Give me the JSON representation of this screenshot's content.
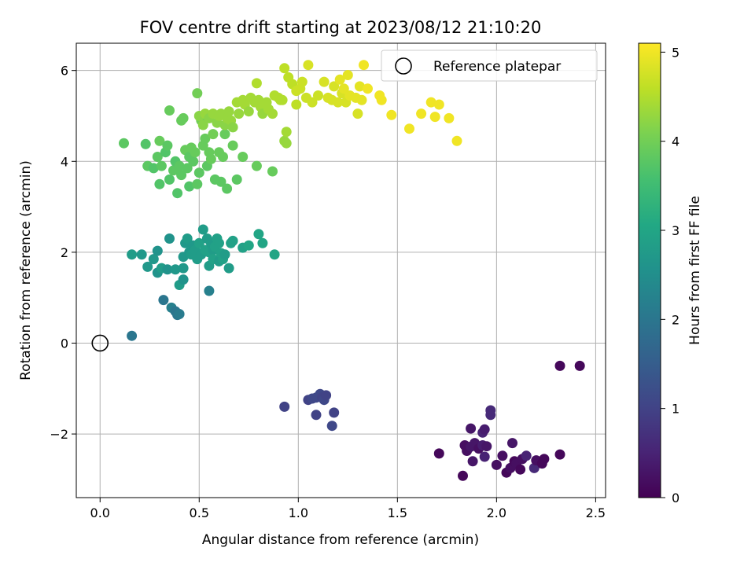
{
  "chart_data": {
    "type": "scatter",
    "title": "FOV centre drift starting at 2023/08/12 21:10:20",
    "xlabel": "Angular distance from reference (arcmin)",
    "ylabel": "Rotation from reference (arcmin)",
    "xlim": [
      -0.12,
      2.55
    ],
    "ylim": [
      -3.4,
      6.6
    ],
    "xticks": [
      0.0,
      0.5,
      1.0,
      1.5,
      2.0,
      2.5
    ],
    "xtick_labels": [
      "0.0",
      "0.5",
      "1.0",
      "1.5",
      "2.0",
      "2.5"
    ],
    "yticks": [
      -2,
      0,
      2,
      4,
      6
    ],
    "ytick_labels": [
      "−2",
      "0",
      "2",
      "4",
      "6"
    ],
    "grid": true,
    "legend": {
      "placement": "top-right",
      "entries": [
        "Reference platepar"
      ]
    },
    "reference_point": {
      "x": 0.0,
      "y": 0.0,
      "label": "Reference platepar"
    },
    "colorbar": {
      "label": "Hours from first FF file",
      "range": [
        0,
        5.1
      ],
      "ticks": [
        0,
        1,
        2,
        3,
        4,
        5
      ],
      "tick_labels": [
        "0",
        "1",
        "2",
        "3",
        "4",
        "5"
      ],
      "colormap": "viridis"
    },
    "series": [
      {
        "points": [
          [
            1.71,
            -2.43,
            0.1
          ],
          [
            1.83,
            -2.92,
            0.1
          ],
          [
            1.84,
            -2.25,
            0.2
          ],
          [
            1.85,
            -2.37,
            0.2
          ],
          [
            1.87,
            -2.28,
            0.3
          ],
          [
            1.88,
            -2.6,
            0.3
          ],
          [
            1.89,
            -2.2,
            0.3
          ],
          [
            1.91,
            -2.32,
            0.2
          ],
          [
            1.93,
            -2.25,
            0.4
          ],
          [
            1.94,
            -2.5,
            0.5
          ],
          [
            1.95,
            -2.27,
            0.3
          ],
          [
            2.0,
            -2.68,
            0.2
          ],
          [
            2.03,
            -2.48,
            0.2
          ],
          [
            2.05,
            -2.85,
            0.1
          ],
          [
            2.07,
            -2.75,
            0.2
          ],
          [
            2.08,
            -2.2,
            0.3
          ],
          [
            2.09,
            -2.6,
            0.1
          ],
          [
            2.1,
            -2.65,
            0.2
          ],
          [
            2.12,
            -2.78,
            0.1
          ],
          [
            2.13,
            -2.55,
            0.2
          ],
          [
            2.15,
            -2.48,
            0.5
          ],
          [
            2.19,
            -2.75,
            0.6
          ],
          [
            2.2,
            -2.58,
            0.2
          ],
          [
            2.23,
            -2.65,
            0.1
          ],
          [
            2.24,
            -2.55,
            0.1
          ],
          [
            2.32,
            -2.45,
            0.1
          ],
          [
            2.32,
            -0.5,
            0.1
          ],
          [
            2.42,
            -0.5,
            0.1
          ],
          [
            1.87,
            -1.88,
            0.3
          ],
          [
            1.93,
            -1.97,
            0.5
          ],
          [
            1.94,
            -1.9,
            0.4
          ],
          [
            1.97,
            -1.48,
            0.6
          ],
          [
            1.97,
            -1.58,
            0.6
          ]
        ]
      },
      {
        "points": [
          [
            0.93,
            -1.4,
            1.0
          ],
          [
            1.05,
            -1.25,
            1.0
          ],
          [
            1.07,
            -1.22,
            1.1
          ],
          [
            1.09,
            -1.2,
            1.1
          ],
          [
            1.11,
            -1.12,
            1.1
          ],
          [
            1.12,
            -1.2,
            1.0
          ],
          [
            1.13,
            -1.25,
            1.1
          ],
          [
            1.14,
            -1.15,
            1.0
          ],
          [
            1.09,
            -1.58,
            1.0
          ],
          [
            1.17,
            -1.82,
            1.1
          ],
          [
            1.18,
            -1.53,
            1.0
          ]
        ]
      },
      {
        "points": [
          [
            0.16,
            0.16,
            2.0
          ],
          [
            0.32,
            0.95,
            2.0
          ],
          [
            0.36,
            0.78,
            2.2
          ],
          [
            0.38,
            0.7,
            2.0
          ],
          [
            0.39,
            0.62,
            2.0
          ],
          [
            0.4,
            0.64,
            2.1
          ],
          [
            0.55,
            1.15,
            2.2
          ]
        ]
      },
      {
        "points": [
          [
            0.16,
            1.95,
            2.8
          ],
          [
            0.21,
            1.95,
            2.7
          ],
          [
            0.24,
            1.68,
            2.7
          ],
          [
            0.27,
            1.85,
            2.7
          ],
          [
            0.29,
            2.03,
            2.6
          ],
          [
            0.29,
            1.55,
            2.6
          ],
          [
            0.31,
            1.65,
            2.8
          ],
          [
            0.34,
            1.62,
            2.6
          ],
          [
            0.35,
            2.3,
            2.6
          ],
          [
            0.38,
            1.62,
            2.7
          ],
          [
            0.4,
            1.28,
            2.8
          ],
          [
            0.42,
            1.4,
            2.6
          ],
          [
            0.42,
            1.65,
            2.7
          ],
          [
            0.42,
            1.9,
            2.7
          ],
          [
            0.43,
            2.2,
            2.7
          ],
          [
            0.44,
            2.3,
            2.8
          ],
          [
            0.45,
            2.0,
            2.7
          ],
          [
            0.46,
            1.95,
            2.8
          ],
          [
            0.47,
            2.15,
            2.7
          ],
          [
            0.48,
            2.05,
            2.8
          ],
          [
            0.49,
            1.85,
            2.8
          ],
          [
            0.5,
            2.2,
            2.9
          ],
          [
            0.51,
            1.95,
            2.8
          ],
          [
            0.52,
            2.5,
            2.8
          ],
          [
            0.53,
            2.05,
            2.9
          ],
          [
            0.54,
            2.3,
            2.8
          ],
          [
            0.55,
            2.0,
            2.9
          ],
          [
            0.55,
            1.7,
            2.8
          ],
          [
            0.56,
            2.2,
            2.8
          ],
          [
            0.57,
            2.05,
            2.8
          ],
          [
            0.57,
            1.85,
            2.9
          ],
          [
            0.58,
            2.12,
            2.9
          ],
          [
            0.59,
            2.3,
            2.9
          ],
          [
            0.6,
            1.8,
            2.8
          ],
          [
            0.6,
            2.2,
            2.9
          ],
          [
            0.61,
            1.98,
            2.9
          ],
          [
            0.62,
            1.85,
            2.9
          ],
          [
            0.63,
            1.95,
            2.8
          ],
          [
            0.65,
            1.65,
            2.8
          ],
          [
            0.66,
            2.2,
            2.9
          ],
          [
            0.67,
            2.25,
            2.9
          ],
          [
            0.72,
            2.1,
            2.9
          ],
          [
            0.75,
            2.15,
            3.0
          ],
          [
            0.8,
            2.4,
            3.0
          ],
          [
            0.82,
            2.2,
            3.0
          ],
          [
            0.88,
            1.95,
            3.0
          ]
        ]
      },
      {
        "points": [
          [
            0.12,
            4.4,
            3.8
          ],
          [
            0.23,
            4.38,
            3.7
          ],
          [
            0.24,
            3.9,
            3.8
          ],
          [
            0.27,
            3.85,
            3.7
          ],
          [
            0.29,
            4.1,
            3.8
          ],
          [
            0.3,
            4.45,
            3.9
          ],
          [
            0.3,
            3.5,
            3.7
          ],
          [
            0.31,
            3.9,
            3.8
          ],
          [
            0.33,
            4.2,
            3.7
          ],
          [
            0.34,
            4.35,
            3.8
          ],
          [
            0.35,
            5.12,
            3.9
          ],
          [
            0.35,
            3.6,
            3.7
          ],
          [
            0.37,
            3.8,
            3.8
          ],
          [
            0.38,
            4.0,
            3.7
          ],
          [
            0.39,
            3.3,
            3.7
          ],
          [
            0.4,
            3.9,
            3.8
          ],
          [
            0.41,
            4.9,
            3.9
          ],
          [
            0.41,
            3.7,
            3.8
          ],
          [
            0.42,
            4.95,
            3.9
          ],
          [
            0.43,
            4.25,
            3.9
          ],
          [
            0.44,
            3.85,
            3.8
          ],
          [
            0.45,
            4.1,
            3.8
          ],
          [
            0.45,
            3.45,
            3.7
          ],
          [
            0.46,
            4.3,
            3.9
          ],
          [
            0.47,
            4.0,
            3.8
          ],
          [
            0.48,
            4.2,
            3.9
          ],
          [
            0.49,
            5.5,
            4.0
          ],
          [
            0.49,
            3.5,
            3.8
          ],
          [
            0.5,
            3.75,
            3.8
          ],
          [
            0.51,
            4.9,
            4.0
          ],
          [
            0.52,
            4.35,
            3.9
          ],
          [
            0.53,
            4.5,
            3.9
          ],
          [
            0.54,
            3.9,
            3.8
          ],
          [
            0.55,
            4.2,
            3.9
          ],
          [
            0.56,
            4.05,
            3.9
          ],
          [
            0.57,
            4.6,
            4.0
          ],
          [
            0.58,
            3.6,
            3.8
          ],
          [
            0.6,
            4.2,
            3.9
          ],
          [
            0.61,
            3.55,
            3.8
          ],
          [
            0.62,
            4.1,
            3.9
          ],
          [
            0.63,
            4.6,
            3.9
          ],
          [
            0.64,
            3.4,
            3.8
          ],
          [
            0.67,
            4.35,
            3.9
          ],
          [
            0.69,
            3.6,
            3.8
          ],
          [
            0.72,
            4.1,
            3.9
          ],
          [
            0.79,
            3.9,
            3.9
          ],
          [
            0.87,
            3.78,
            3.9
          ]
        ]
      },
      {
        "points": [
          [
            0.5,
            5.0,
            4.2
          ],
          [
            0.52,
            4.8,
            4.2
          ],
          [
            0.53,
            5.05,
            4.3
          ],
          [
            0.55,
            4.95,
            4.2
          ],
          [
            0.57,
            5.05,
            4.3
          ],
          [
            0.59,
            4.85,
            4.2
          ],
          [
            0.6,
            5.0,
            4.3
          ],
          [
            0.61,
            5.05,
            4.3
          ],
          [
            0.63,
            4.8,
            4.2
          ],
          [
            0.64,
            4.95,
            4.3
          ],
          [
            0.65,
            5.1,
            4.3
          ],
          [
            0.66,
            4.9,
            4.3
          ],
          [
            0.67,
            4.75,
            4.2
          ],
          [
            0.69,
            5.3,
            4.4
          ],
          [
            0.7,
            5.05,
            4.3
          ],
          [
            0.72,
            5.35,
            4.4
          ],
          [
            0.73,
            5.25,
            4.4
          ],
          [
            0.75,
            5.1,
            4.3
          ],
          [
            0.76,
            5.4,
            4.4
          ],
          [
            0.78,
            5.3,
            4.4
          ],
          [
            0.79,
            5.72,
            4.5
          ],
          [
            0.8,
            5.35,
            4.4
          ],
          [
            0.81,
            5.2,
            4.4
          ],
          [
            0.82,
            5.05,
            4.3
          ],
          [
            0.84,
            5.3,
            4.4
          ],
          [
            0.85,
            5.15,
            4.4
          ],
          [
            0.87,
            5.05,
            4.4
          ],
          [
            0.88,
            5.45,
            4.5
          ],
          [
            0.9,
            5.4,
            4.5
          ],
          [
            0.91,
            5.35,
            4.5
          ],
          [
            0.92,
            5.35,
            4.5
          ],
          [
            0.93,
            4.45,
            4.3
          ],
          [
            0.94,
            4.65,
            4.4
          ],
          [
            0.94,
            4.4,
            4.3
          ]
        ]
      },
      {
        "points": [
          [
            0.93,
            6.05,
            4.6
          ],
          [
            0.95,
            5.85,
            4.6
          ],
          [
            0.97,
            5.7,
            4.6
          ],
          [
            0.99,
            5.55,
            4.7
          ],
          [
            0.99,
            5.25,
            4.6
          ],
          [
            1.01,
            5.6,
            4.7
          ],
          [
            1.02,
            5.75,
            4.7
          ],
          [
            1.04,
            5.4,
            4.7
          ],
          [
            1.05,
            6.12,
            4.8
          ],
          [
            1.07,
            5.3,
            4.7
          ],
          [
            1.1,
            5.45,
            4.7
          ],
          [
            1.13,
            5.75,
            4.8
          ],
          [
            1.15,
            5.4,
            4.8
          ],
          [
            1.17,
            5.35,
            4.8
          ],
          [
            1.18,
            5.65,
            4.8
          ],
          [
            1.2,
            5.3,
            4.8
          ],
          [
            1.21,
            5.8,
            4.9
          ],
          [
            1.22,
            5.5,
            4.8
          ],
          [
            1.23,
            5.6,
            4.9
          ],
          [
            1.24,
            5.3,
            4.8
          ],
          [
            1.25,
            5.9,
            4.9
          ],
          [
            1.26,
            5.45,
            4.9
          ],
          [
            1.29,
            5.4,
            4.9
          ],
          [
            1.3,
            5.05,
            4.8
          ],
          [
            1.31,
            5.65,
            4.9
          ],
          [
            1.32,
            5.35,
            4.9
          ],
          [
            1.33,
            6.12,
            5.0
          ],
          [
            1.35,
            5.6,
            5.0
          ],
          [
            1.41,
            5.45,
            5.0
          ],
          [
            1.42,
            5.35,
            5.0
          ],
          [
            1.47,
            5.02,
            5.0
          ],
          [
            1.56,
            4.72,
            5.0
          ],
          [
            1.62,
            5.05,
            5.0
          ],
          [
            1.67,
            5.3,
            5.0
          ],
          [
            1.69,
            4.98,
            5.0
          ],
          [
            1.71,
            5.25,
            5.0
          ],
          [
            1.76,
            4.95,
            5.0
          ],
          [
            1.8,
            4.45,
            5.0
          ]
        ]
      }
    ]
  }
}
